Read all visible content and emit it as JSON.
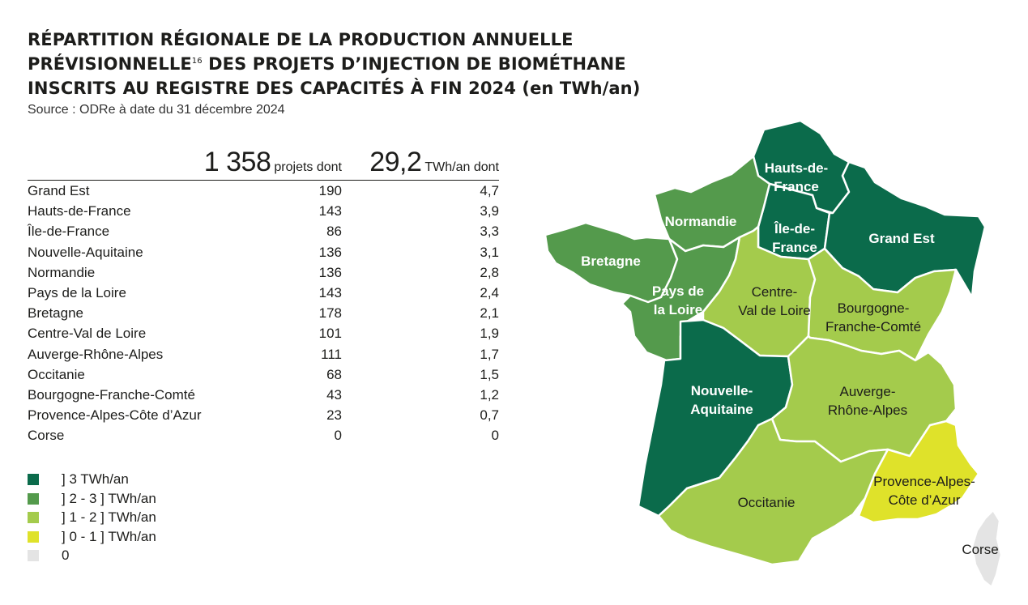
{
  "title": {
    "line1": "RÉPARTITION RÉGIONALE DE LA PRODUCTION ANNUELLE",
    "line2": "PRÉVISIONNELLE",
    "footnote": "16",
    "line2b": " DES PROJETS D’INJECTION DE BIOMÉTHANE",
    "line3": "INSCRITS AU REGISTRE DES CAPACITÉS À FIN 2024",
    "unit": "(en TWh/an)"
  },
  "source": "Source : ODRe à date du 31 décembre 2024",
  "table": {
    "total_projets": "1 358",
    "total_projets_label": "projets dont",
    "total_twh": "29,2",
    "total_twh_label": "TWh/an dont",
    "rows": [
      {
        "region": "Grand Est",
        "projets": "190",
        "twh": "4,7"
      },
      {
        "region": "Hauts-de-France",
        "projets": "143",
        "twh": "3,9"
      },
      {
        "region": "Île-de-France",
        "projets": "86",
        "twh": "3,3"
      },
      {
        "region": "Nouvelle-Aquitaine",
        "projets": "136",
        "twh": "3,1"
      },
      {
        "region": "Normandie",
        "projets": "136",
        "twh": "2,8"
      },
      {
        "region": "Pays de la Loire",
        "projets": "143",
        "twh": "2,4"
      },
      {
        "region": "Bretagne",
        "projets": "178",
        "twh": "2,1"
      },
      {
        "region": "Centre-Val de Loire",
        "projets": "101",
        "twh": "1,9"
      },
      {
        "region": "Auverge-Rhône-Alpes",
        "projets": "111",
        "twh": "1,7"
      },
      {
        "region": "Occitanie",
        "projets": "68",
        "twh": "1,5"
      },
      {
        "region": "Bourgogne-Franche-Comté",
        "projets": "43",
        "twh": "1,2"
      },
      {
        "region": "Provence-Alpes-Côte d’Azur",
        "projets": "23",
        "twh": "0,7"
      },
      {
        "region": "Corse",
        "projets": "0",
        "twh": "0"
      }
    ]
  },
  "legend": [
    {
      "label": "] 3 TWh/an",
      "color": "#0b6b4b"
    },
    {
      "label": "] 2 - 3 ] TWh/an",
      "color": "#549a4c"
    },
    {
      "label": "] 1 - 2 ] TWh/an",
      "color": "#a4cb4c"
    },
    {
      "label": "] 0 - 1 ] TWh/an",
      "color": "#dfe22a"
    },
    {
      "label": "0",
      "color": "#e4e4e4"
    }
  ],
  "map": {
    "labels": {
      "hauts_de_france": [
        "Hauts-de-",
        "France"
      ],
      "normandie": [
        "Normandie"
      ],
      "ile_de_france": [
        "Île-de-",
        "France"
      ],
      "grand_est": [
        "Grand Est"
      ],
      "bretagne": [
        "Bretagne"
      ],
      "pays_de_la_loire": [
        "Pays de",
        "la Loire"
      ],
      "centre": [
        "Centre-",
        "Val de Loire"
      ],
      "bourgogne": [
        "Bourgogne-",
        "Franche-Comté"
      ],
      "nouvelle_aquitaine": [
        "Nouvelle-",
        "Aquitaine"
      ],
      "auvergne": [
        "Auverge-",
        "Rhône-Alpes"
      ],
      "occitanie": [
        "Occitanie"
      ],
      "paca": [
        "Provence-Alpes-",
        "Côte d’Azur"
      ],
      "corse": [
        "Corse"
      ]
    }
  }
}
